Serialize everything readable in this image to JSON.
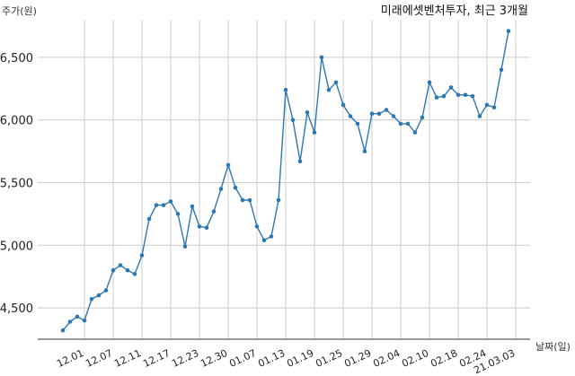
{
  "chart_data": {
    "type": "line",
    "title": "미래에셋벤처투자, 최근 3개월",
    "xlabel": "날짜(일)",
    "ylabel": "주가(원)",
    "ylim": [
      4250,
      6800
    ],
    "yticks": [
      4500,
      5000,
      5500,
      6000,
      6500
    ],
    "ytick_labels": [
      "4,500",
      "5,000",
      "5,500",
      "6,000",
      "6,500"
    ],
    "xtick_labels": [
      "12.01",
      "12.07",
      "12.11",
      "12.17",
      "12.23",
      "12.30",
      "01.07",
      "01.13",
      "01.19",
      "01.25",
      "01.29",
      "02.04",
      "02.10",
      "02.18",
      "02.24",
      "21.03.03"
    ],
    "xtick_index": [
      3,
      7,
      11,
      15,
      19,
      23,
      27,
      31,
      35,
      39,
      43,
      47,
      51,
      55,
      59,
      63
    ],
    "grid": true,
    "color": "#2e78b0",
    "series": [
      {
        "values": [
          4320,
          4390,
          4430,
          4400,
          4570,
          4600,
          4640,
          4800,
          4840,
          4800,
          4770,
          4920,
          5210,
          5320,
          5320,
          5350,
          5250,
          4990,
          5310,
          5150,
          5140,
          5270,
          5450,
          5640,
          5460,
          5360,
          5360,
          5150,
          5040,
          5070,
          5360,
          6240,
          6000,
          5670,
          6060,
          5900,
          6500,
          6240,
          6300,
          6120,
          6030,
          5970,
          5750,
          6050,
          6050,
          6080,
          6030,
          5970,
          5970,
          5900,
          6020,
          6300,
          6180,
          6190,
          6260,
          6200,
          6200,
          6190,
          6030,
          6120,
          6100,
          6400,
          6710
        ]
      }
    ]
  }
}
